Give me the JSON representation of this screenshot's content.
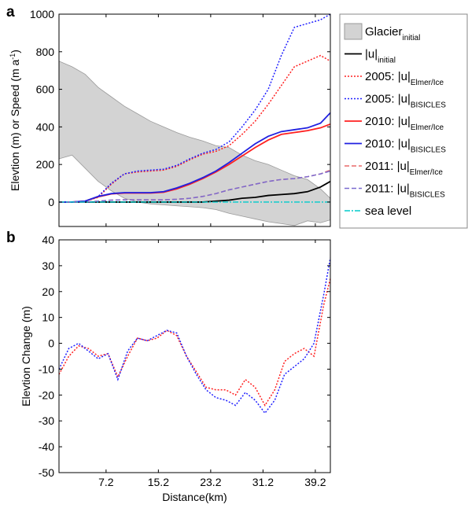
{
  "chart_data": [
    {
      "type": "line",
      "panel_label": "a",
      "ylabel": "Elevtion (m) or Speed (m a",
      "ylabel_sup": "-1",
      "ylabel_end": ")",
      "x": [
        0,
        2,
        4,
        6,
        8,
        10,
        12,
        14,
        16,
        18,
        20,
        22,
        24,
        26,
        28,
        30,
        32,
        34,
        36,
        38,
        40,
        41.5
      ],
      "xlim": [
        0,
        41.5
      ],
      "xticks": [
        7.2,
        15.2,
        23.2,
        31.2,
        39.2
      ],
      "xtick_labels": false,
      "ylim": [
        -130,
        1000
      ],
      "yticks": [
        0,
        200,
        400,
        600,
        800,
        1000
      ],
      "legend": "outside right",
      "series": [
        {
          "name": "Glacier",
          "name_sub": "initial",
          "kind": "band",
          "color": "#d3d3d3",
          "upper": [
            750,
            720,
            680,
            610,
            560,
            510,
            470,
            430,
            400,
            370,
            345,
            325,
            300,
            290,
            250,
            220,
            200,
            170,
            140,
            120,
            70,
            20
          ],
          "lower": [
            230,
            250,
            180,
            110,
            60,
            20,
            0,
            -10,
            -15,
            -20,
            -25,
            -30,
            -40,
            -60,
            -75,
            -90,
            -105,
            -115,
            -125,
            -100,
            -110,
            -95
          ]
        },
        {
          "name": "|u|",
          "name_sub": "initial",
          "color": "#000000",
          "linestyle": "solid",
          "values": [
            0,
            0,
            0,
            0,
            0,
            0,
            0,
            0,
            0,
            0,
            0,
            0,
            5,
            10,
            20,
            25,
            35,
            40,
            45,
            55,
            80,
            110
          ]
        },
        {
          "name": "2005: |u|",
          "name_sub": "Elmer/Ice",
          "color": "#ff2020",
          "linestyle": "dotted",
          "values": [
            0,
            0,
            5,
            25,
            95,
            150,
            160,
            165,
            170,
            190,
            225,
            255,
            270,
            300,
            360,
            430,
            520,
            620,
            720,
            750,
            780,
            750
          ]
        },
        {
          "name": "2005: |u|",
          "name_sub": "BISICLES",
          "color": "#2020ff",
          "linestyle": "dotted",
          "values": [
            0,
            0,
            5,
            30,
            100,
            150,
            165,
            170,
            175,
            195,
            230,
            260,
            280,
            320,
            400,
            490,
            600,
            780,
            930,
            950,
            970,
            1000
          ]
        },
        {
          "name": "2010: |u|",
          "name_sub": "Elmer/Ice",
          "color": "#ff2020",
          "linestyle": "solid",
          "values": [
            0,
            0,
            5,
            28,
            43,
            48,
            48,
            48,
            52,
            70,
            95,
            125,
            160,
            200,
            245,
            290,
            330,
            360,
            370,
            380,
            395,
            415
          ]
        },
        {
          "name": "2010: |u|",
          "name_sub": "BISICLES",
          "color": "#2020e0",
          "linestyle": "solid",
          "values": [
            0,
            0,
            5,
            30,
            45,
            50,
            50,
            50,
            55,
            75,
            100,
            130,
            165,
            210,
            260,
            310,
            350,
            375,
            385,
            395,
            420,
            475
          ]
        },
        {
          "name": "2011: |u|",
          "name_sub": "Elmer/Ice",
          "color": "#e86a6a",
          "linestyle": "dashed",
          "values": [
            0,
            0,
            0,
            5,
            10,
            12,
            12,
            12,
            12,
            15,
            20,
            30,
            45,
            65,
            80,
            95,
            110,
            120,
            125,
            135,
            150,
            170
          ]
        },
        {
          "name": "2011: |u|",
          "name_sub": "BISICLES",
          "color": "#7a6ad0",
          "linestyle": "dashed",
          "values": [
            0,
            0,
            0,
            5,
            10,
            12,
            12,
            12,
            12,
            15,
            20,
            30,
            45,
            65,
            80,
            95,
            110,
            120,
            125,
            135,
            150,
            165
          ]
        },
        {
          "name": "sea level",
          "kind": "level",
          "color": "#00cccc",
          "linestyle": "dashdot",
          "level": 0
        }
      ]
    },
    {
      "type": "line",
      "panel_label": "b",
      "ylabel": "Elevtion Change (m)",
      "xlabel": "Distance(km)",
      "x": [
        0,
        1.5,
        3,
        4.5,
        6,
        7.5,
        9,
        10.5,
        12,
        13.5,
        15,
        16.5,
        18,
        19.5,
        21,
        22.5,
        24,
        25.5,
        27,
        28.5,
        30,
        31.5,
        33,
        34.5,
        36,
        37.5,
        39,
        40.5,
        41.5
      ],
      "xlim": [
        0,
        41.5
      ],
      "xticks": [
        7.2,
        15.2,
        23.2,
        31.2,
        39.2
      ],
      "xtick_labels": true,
      "ylim": [
        -50,
        40
      ],
      "yticks": [
        -50,
        -40,
        -30,
        -20,
        -10,
        0,
        10,
        20,
        30,
        40
      ],
      "series": [
        {
          "color": "#ff2020",
          "linestyle": "dotted",
          "values": [
            -12,
            -5,
            -1,
            -2,
            -5,
            -4,
            -13,
            -5,
            2,
            1,
            2,
            5,
            3,
            -5,
            -11,
            -17,
            -18,
            -18,
            -20,
            -14,
            -17,
            -24,
            -18,
            -7,
            -4,
            -2,
            -5,
            15,
            25
          ]
        },
        {
          "color": "#2020ff",
          "linestyle": "dotted",
          "values": [
            -10,
            -2,
            0,
            -3,
            -6,
            -4,
            -14,
            -3,
            2,
            1,
            3,
            5,
            4,
            -5,
            -12,
            -18,
            -21,
            -22,
            -24,
            -19,
            -22,
            -27,
            -22,
            -12,
            -9,
            -6,
            0,
            19,
            33
          ]
        }
      ]
    }
  ]
}
